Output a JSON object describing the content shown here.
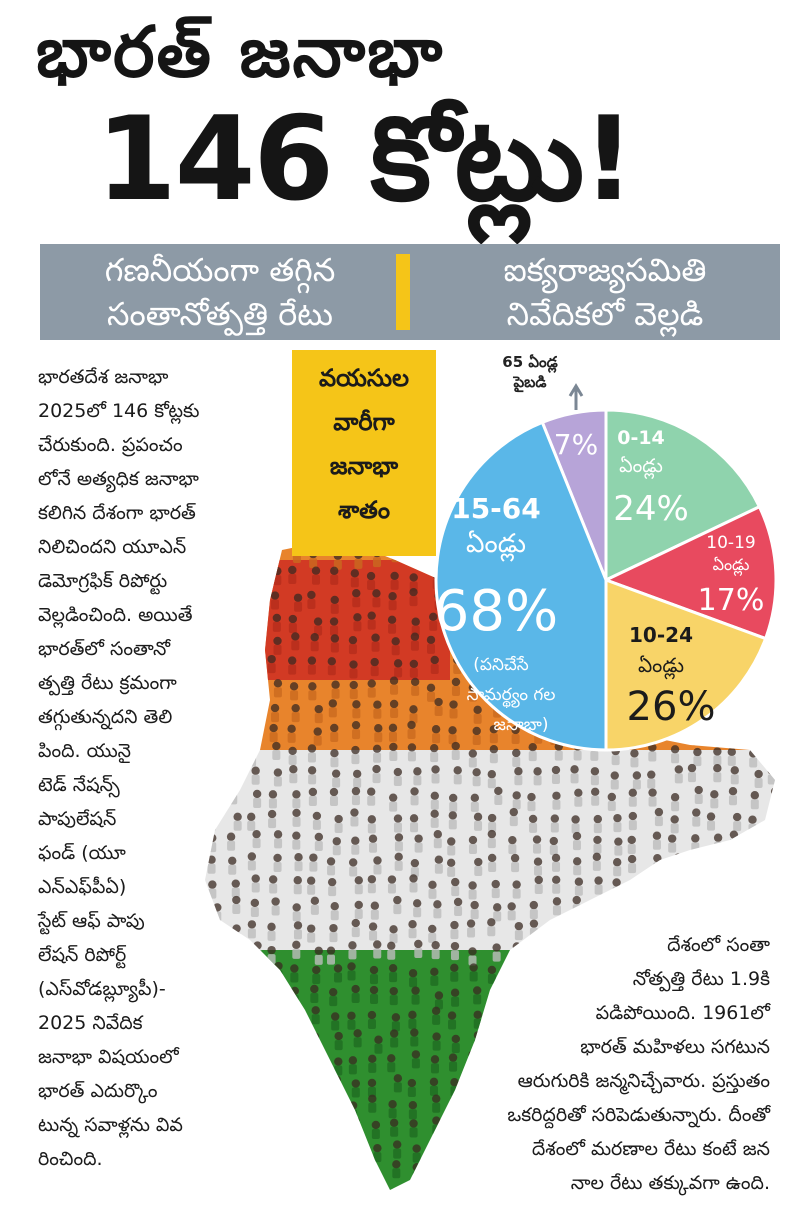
{
  "headline": {
    "line1": "భారత్ జనాభా",
    "line2": "146 కోట్లు!"
  },
  "band": {
    "left": [
      "గణనీయంగా తగ్గిన",
      "సంతానోత్పత్తి రేటు"
    ],
    "right": [
      "ఐక్యరాజ్యసమితి",
      "నివేదికలో వెల్లడి"
    ]
  },
  "colors": {
    "band_bg": "#8d9aa6",
    "accent_yellow": "#f5c518",
    "pie_teal": "#8fd3ad",
    "pie_red": "#e84a5f",
    "pie_yellow": "#f8d468",
    "pie_blue": "#5ab7e8",
    "pie_purple": "#b7a4d8",
    "map_saffron": "#e8842c",
    "map_red": "#d23a24",
    "map_white": "#e7e7e7",
    "map_green": "#2f8f2f"
  },
  "article_left": [
    "భారతదేశ జనాభా",
    "2025లో 146 కోట్లకు",
    "చేరుకుంది. ప్రపంచం",
    "లోనే అత్యధిక జనాభా",
    "కలిగిన దేశంగా భారత్",
    "నిలిచిందని యూఎన్",
    "డెమోగ్రఫిక్ రిపోర్టు",
    "వెల్లడించింది. అయితే",
    "భారత్‌లో సంతానో",
    "త్పత్తి రేటు క్రమంగా",
    "తగ్గుతున్నదని తెలి",
    "పింది. యునై",
    "టెడ్ నేషన్స్",
    "పాపులేషన్",
    "ఫండ్ (యూ",
    "ఎన్ఎఫ్‌పీఏ)",
    "స్టేట్ ఆఫ్ పాపు",
    "లేషన్ రిపోర్ట్",
    "(ఎస్‌వోడబ్ల్యూపీ)-",
    "2025 నివేదిక",
    "జనాభా విషయంలో",
    "భారత్ ఎదుర్కొం",
    "టున్న సవాళ్లను వివ",
    "రించింది."
  ],
  "article_right": [
    "దేశంలో సంతా",
    "నోత్పత్తి రేటు 1.9కి",
    "పడిపోయింది. 1961లో",
    "భారత్ మహిళలు సగటున",
    "ఆరుగురికి జన్మనిచ్చేవారు. ప్రస్తుతం",
    "ఒకరిద్దరితో సరిపెడుతున్నారు. దీంతో",
    "దేశంలో మరణాల రేటు కంటే జన",
    "నాల రేటు తక్కువగా ఉంది."
  ],
  "chart_data": {
    "type": "pie",
    "title": [
      "వయసుల",
      "వారీగా",
      "జనాభా",
      "శాతం"
    ],
    "slices": [
      {
        "label": "ఏండ్లు",
        "range": "0-14",
        "value": 24,
        "value_label": "24%",
        "color": "#8fd3ad"
      },
      {
        "label": "ఏండ్లు",
        "range": "10-19",
        "value": 17,
        "value_label": "17%",
        "color": "#e84a5f"
      },
      {
        "label": "ఏండ్లు",
        "range": "10-24",
        "value": 26,
        "value_label": "26%",
        "color": "#f8d468"
      },
      {
        "label": "ఏండ్లు",
        "range": "15-64",
        "value": 68,
        "value_label": "68%",
        "note": [
          "(పనిచేసే",
          "సామర్థ్యం గల",
          "జనాభా)"
        ],
        "color": "#5ab7e8"
      },
      {
        "label": "ఏండ్ల పైబడి",
        "range": "65",
        "value": 7,
        "value_label": "7%",
        "color": "#b7a4d8"
      }
    ],
    "callout": [
      "65 ఏండ్ల",
      "పైబడి"
    ]
  }
}
